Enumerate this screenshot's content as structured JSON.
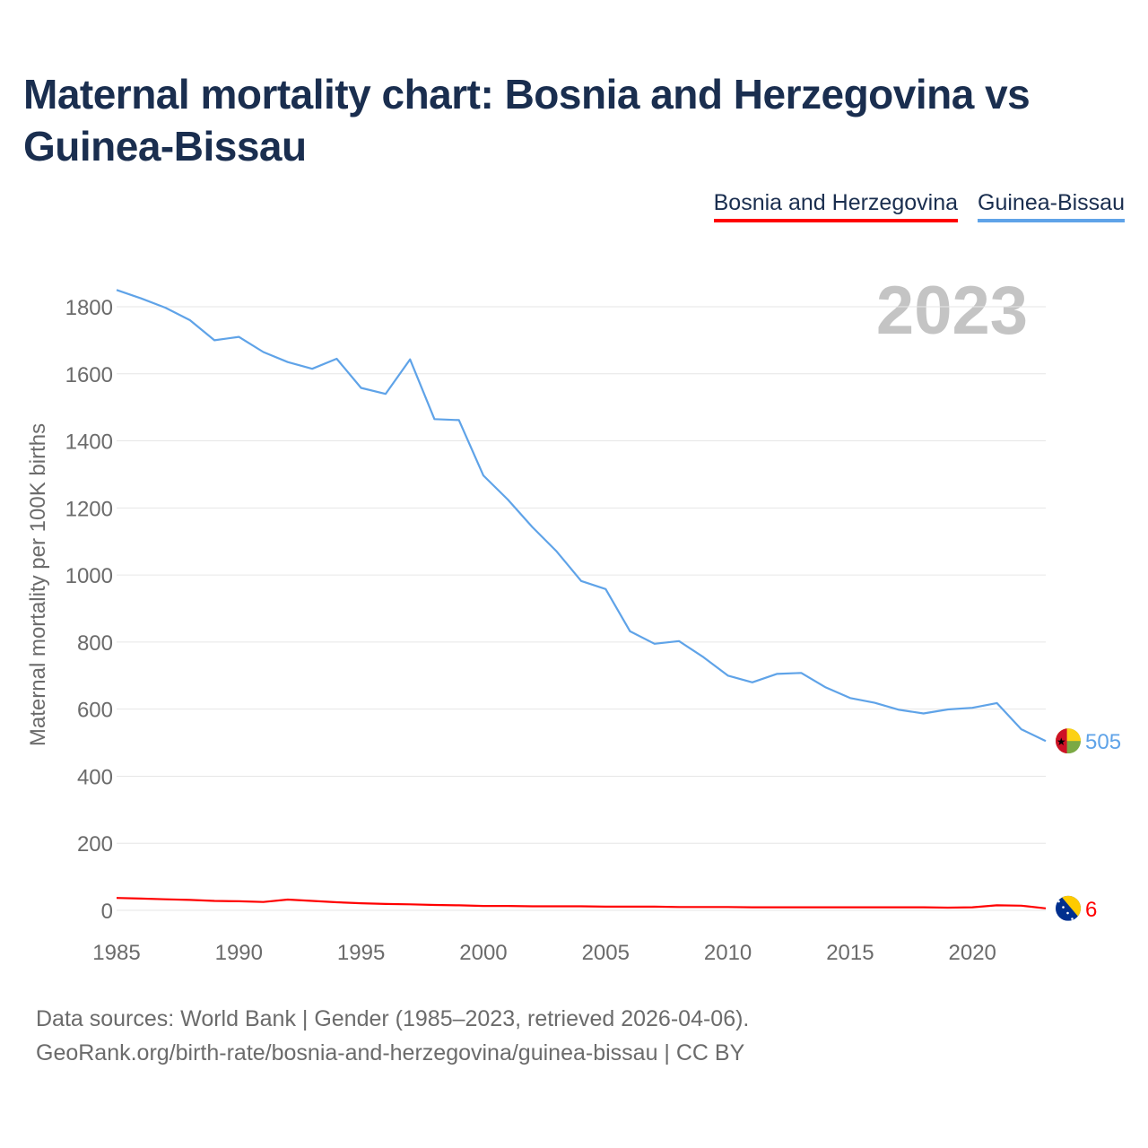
{
  "title": "Maternal mortality chart: Bosnia and Herzegovina vs Guinea-Bissau",
  "legend": [
    "Bosnia and Herzegovina",
    "Guinea-Bissau"
  ],
  "year_label": "2023",
  "footer": {
    "line1": "Data sources: World Bank | Gender (1985–2023, retrieved 2026-04-06).",
    "line2": "GeoRank.org/birth-rate/bosnia-and-herzegovina/guinea-bissau | CC BY"
  },
  "chart_data": {
    "type": "line",
    "title": "Maternal mortality chart: Bosnia and Herzegovina vs Guinea-Bissau",
    "xlabel": "",
    "ylabel": "Maternal mortality per 100K births",
    "xlim": [
      1985,
      2023
    ],
    "ylim": [
      0,
      1800
    ],
    "x_ticks": [
      1985,
      1990,
      1995,
      2000,
      2005,
      2010,
      2015,
      2020
    ],
    "y_ticks": [
      0,
      200,
      400,
      600,
      800,
      1000,
      1200,
      1400,
      1600,
      1800
    ],
    "grid": true,
    "legend_position": "top-right",
    "x": [
      1985,
      1986,
      1987,
      1988,
      1989,
      1990,
      1991,
      1992,
      1993,
      1994,
      1995,
      1996,
      1997,
      1998,
      1999,
      2000,
      2001,
      2002,
      2003,
      2004,
      2005,
      2006,
      2007,
      2008,
      2009,
      2010,
      2011,
      2012,
      2013,
      2014,
      2015,
      2016,
      2017,
      2018,
      2019,
      2020,
      2021,
      2022,
      2023
    ],
    "series": [
      {
        "name": "Bosnia and Herzegovina",
        "color": "#ff0000",
        "end_label": "6",
        "flag": "bosnia-flag-icon",
        "values": [
          37,
          35,
          33,
          31,
          28,
          27,
          25,
          32,
          28,
          24,
          21,
          19,
          18,
          16,
          15,
          13,
          13,
          12,
          12,
          12,
          11,
          11,
          11,
          10,
          10,
          10,
          9,
          9,
          9,
          9,
          9,
          9,
          9,
          9,
          8,
          9,
          15,
          14,
          6
        ]
      },
      {
        "name": "Guinea-Bissau",
        "color": "#5fa3e8",
        "end_label": "505",
        "flag": "guinea-bissau-flag-icon",
        "values": [
          1850,
          1825,
          1797,
          1760,
          1700,
          1710,
          1665,
          1635,
          1615,
          1645,
          1558,
          1540,
          1643,
          1465,
          1462,
          1297,
          1225,
          1143,
          1070,
          982,
          958,
          832,
          795,
          803,
          755,
          700,
          680,
          705,
          708,
          665,
          633,
          619,
          598,
          587,
          599,
          604,
          618,
          540,
          505
        ]
      }
    ]
  }
}
